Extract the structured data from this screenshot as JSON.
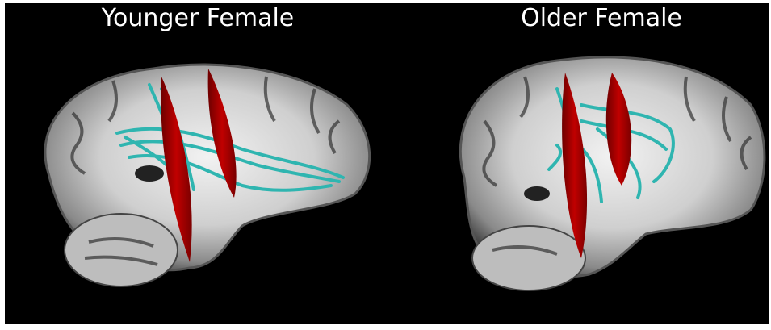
{
  "panels": [
    {
      "title": "Younger Female"
    },
    {
      "title": "Older Female"
    }
  ]
}
